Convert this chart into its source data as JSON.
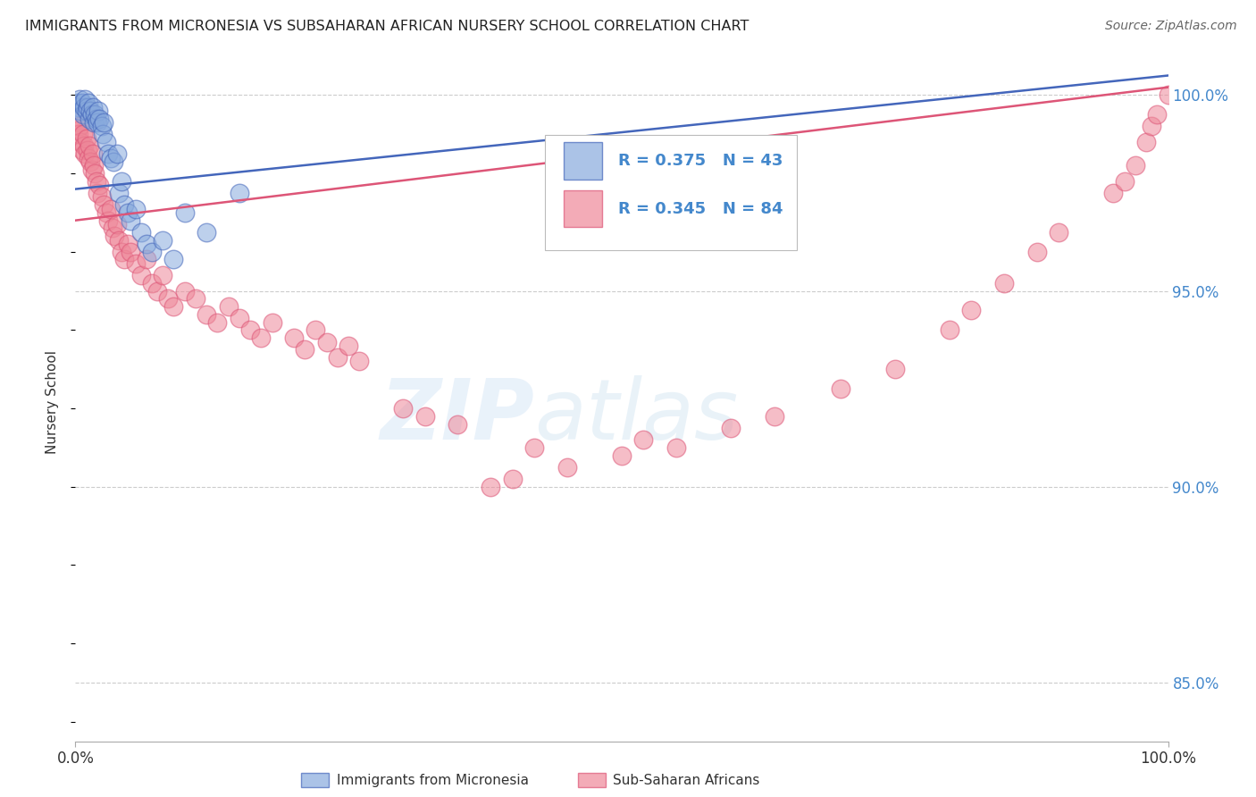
{
  "title": "IMMIGRANTS FROM MICRONESIA VS SUBSAHARAN AFRICAN NURSERY SCHOOL CORRELATION CHART",
  "source": "Source: ZipAtlas.com",
  "ylabel": "Nursery School",
  "xlim": [
    0.0,
    1.0
  ],
  "ylim": [
    0.835,
    1.008
  ],
  "yticks": [
    0.85,
    0.9,
    0.95,
    1.0
  ],
  "ytick_labels": [
    "85.0%",
    "90.0%",
    "95.0%",
    "100.0%"
  ],
  "xtick_labels": [
    "0.0%",
    "100.0%"
  ],
  "legend_R1": "R = 0.375",
  "legend_N1": "N = 43",
  "legend_R2": "R = 0.345",
  "legend_N2": "N = 84",
  "color_blue": "#88AADD",
  "color_pink": "#EE8899",
  "color_blue_line": "#4466BB",
  "color_pink_line": "#DD5577",
  "color_axis_label": "#4488CC",
  "background_color": "#FFFFFF",
  "watermark_zip": "ZIP",
  "watermark_atlas": "atlas",
  "micronesia_x": [
    0.002,
    0.003,
    0.004,
    0.005,
    0.006,
    0.007,
    0.008,
    0.009,
    0.01,
    0.011,
    0.012,
    0.013,
    0.014,
    0.015,
    0.016,
    0.017,
    0.018,
    0.019,
    0.02,
    0.021,
    0.022,
    0.024,
    0.025,
    0.026,
    0.028,
    0.03,
    0.032,
    0.035,
    0.038,
    0.04,
    0.042,
    0.045,
    0.048,
    0.05,
    0.055,
    0.06,
    0.065,
    0.07,
    0.08,
    0.09,
    0.1,
    0.12,
    0.15
  ],
  "micronesia_y": [
    0.998,
    0.997,
    0.999,
    0.996,
    0.998,
    0.995,
    0.997,
    0.999,
    0.996,
    0.997,
    0.998,
    0.994,
    0.996,
    0.995,
    0.997,
    0.993,
    0.995,
    0.994,
    0.993,
    0.996,
    0.994,
    0.992,
    0.99,
    0.993,
    0.988,
    0.985,
    0.984,
    0.983,
    0.985,
    0.975,
    0.978,
    0.972,
    0.97,
    0.968,
    0.971,
    0.965,
    0.962,
    0.96,
    0.963,
    0.958,
    0.97,
    0.965,
    0.975
  ],
  "subsaharan_x": [
    0.001,
    0.002,
    0.003,
    0.004,
    0.005,
    0.006,
    0.007,
    0.008,
    0.009,
    0.01,
    0.011,
    0.012,
    0.013,
    0.014,
    0.015,
    0.016,
    0.017,
    0.018,
    0.019,
    0.02,
    0.022,
    0.024,
    0.026,
    0.028,
    0.03,
    0.032,
    0.034,
    0.036,
    0.038,
    0.04,
    0.042,
    0.045,
    0.048,
    0.05,
    0.055,
    0.06,
    0.065,
    0.07,
    0.075,
    0.08,
    0.085,
    0.09,
    0.1,
    0.11,
    0.12,
    0.13,
    0.14,
    0.15,
    0.16,
    0.17,
    0.18,
    0.2,
    0.21,
    0.22,
    0.23,
    0.24,
    0.25,
    0.26,
    0.3,
    0.32,
    0.35,
    0.38,
    0.4,
    0.42,
    0.45,
    0.5,
    0.52,
    0.55,
    0.6,
    0.64,
    0.7,
    0.75,
    0.8,
    0.82,
    0.85,
    0.88,
    0.9,
    0.95,
    0.96,
    0.97,
    0.98,
    0.985,
    0.99,
    1.0
  ],
  "subsaharan_y": [
    0.993,
    0.991,
    0.99,
    0.992,
    0.988,
    0.986,
    0.99,
    0.987,
    0.985,
    0.989,
    0.986,
    0.984,
    0.987,
    0.983,
    0.981,
    0.985,
    0.982,
    0.98,
    0.978,
    0.975,
    0.977,
    0.974,
    0.972,
    0.97,
    0.968,
    0.971,
    0.966,
    0.964,
    0.967,
    0.963,
    0.96,
    0.958,
    0.962,
    0.96,
    0.957,
    0.954,
    0.958,
    0.952,
    0.95,
    0.954,
    0.948,
    0.946,
    0.95,
    0.948,
    0.944,
    0.942,
    0.946,
    0.943,
    0.94,
    0.938,
    0.942,
    0.938,
    0.935,
    0.94,
    0.937,
    0.933,
    0.936,
    0.932,
    0.92,
    0.918,
    0.916,
    0.9,
    0.902,
    0.91,
    0.905,
    0.908,
    0.912,
    0.91,
    0.915,
    0.918,
    0.925,
    0.93,
    0.94,
    0.945,
    0.952,
    0.96,
    0.965,
    0.975,
    0.978,
    0.982,
    0.988,
    0.992,
    0.995,
    1.0
  ]
}
